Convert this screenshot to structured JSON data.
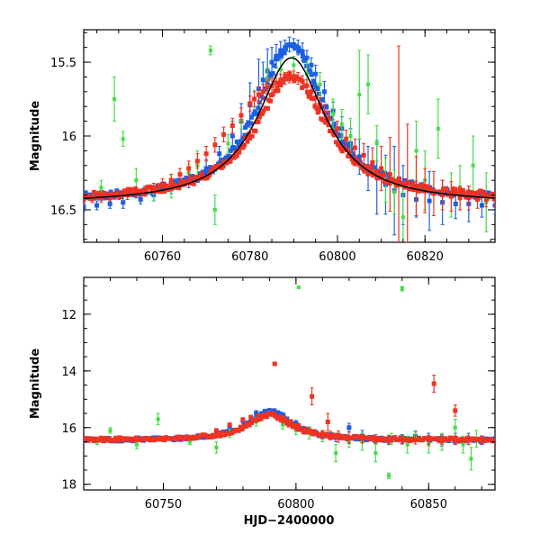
{
  "colors": {
    "blue": "#1f5fe0",
    "green": "#44dd44",
    "red": "#ee3322",
    "model": "#000000"
  },
  "chart_data": [
    {
      "type": "scatter",
      "panel": "top",
      "xlabel": "",
      "ylabel": "Magnitude",
      "xlim": [
        60742,
        60836
      ],
      "ylim": [
        16.72,
        15.28
      ],
      "y_inverted": true,
      "xticks": [
        60760,
        60780,
        60800,
        60820
      ],
      "xtick_labels": [
        "60760",
        "60780",
        "60800",
        "60820"
      ],
      "yticks": [
        15.5,
        16,
        16.5
      ],
      "ytick_labels": [
        "15.5",
        "16",
        "16.5"
      ],
      "series": [
        {
          "color_key": "blue",
          "peak": 15.38,
          "baseline": 16.45,
          "t0": 60789.5,
          "width": 9.5,
          "x": [
            60742,
            60745,
            60748,
            60751,
            60755,
            60758,
            60762,
            60766,
            60770,
            60773,
            60776,
            60778,
            60780,
            60782,
            60783,
            60784,
            60785,
            60786,
            60787,
            60788,
            60789,
            60790,
            60791,
            60792,
            60793,
            60794,
            60795,
            60797,
            60799,
            60801,
            60803,
            60805,
            60807,
            60809,
            60811,
            60813,
            60815,
            60818,
            60821,
            60824,
            60827,
            60830,
            60833,
            60836
          ],
          "y": [
            16.48,
            16.47,
            16.46,
            16.45,
            16.43,
            16.4,
            16.36,
            16.3,
            16.22,
            16.12,
            16.0,
            15.9,
            15.79,
            15.68,
            15.62,
            15.56,
            15.5,
            15.46,
            15.42,
            15.4,
            15.38,
            15.38,
            15.4,
            15.43,
            15.47,
            15.52,
            15.58,
            15.7,
            15.83,
            15.95,
            16.05,
            16.14,
            16.22,
            16.28,
            16.33,
            16.37,
            16.4,
            16.43,
            16.44,
            16.45,
            16.46,
            16.46,
            16.47,
            16.47
          ],
          "err": [
            0.03,
            0.03,
            0.03,
            0.04,
            0.03,
            0.04,
            0.03,
            0.05,
            0.06,
            0.05,
            0.1,
            0.12,
            0.15,
            0.2,
            0.12,
            0.15,
            0.1,
            0.08,
            0.06,
            0.05,
            0.05,
            0.04,
            0.05,
            0.06,
            0.05,
            0.05,
            0.06,
            0.07,
            0.06,
            0.08,
            0.1,
            0.12,
            0.15,
            0.25,
            0.2,
            0.3,
            0.2,
            0.12,
            0.2,
            0.15,
            0.1,
            0.12,
            0.08,
            0.06
          ]
        },
        {
          "color_key": "green",
          "x": [
            60746,
            60749,
            60751,
            60754,
            60758,
            60762,
            60766,
            60768,
            60771,
            60772,
            60775,
            60778,
            60781,
            60784,
            60787,
            60790,
            60793,
            60796,
            60799,
            60801,
            60803,
            60805,
            60807,
            60809,
            60811,
            60813,
            60815,
            60818,
            60820,
            60823,
            60826,
            60828,
            60831,
            60834
          ],
          "y": [
            16.35,
            15.75,
            16.02,
            16.3,
            16.38,
            16.34,
            16.25,
            16.2,
            15.42,
            16.5,
            16.05,
            15.9,
            15.75,
            15.62,
            15.55,
            15.52,
            15.58,
            15.65,
            15.85,
            15.92,
            16.0,
            15.72,
            15.65,
            16.05,
            16.3,
            16.38,
            16.55,
            16.1,
            16.3,
            15.95,
            16.4,
            16.35,
            16.2,
            16.45
          ],
          "err": [
            0.05,
            0.15,
            0.05,
            0.08,
            0.06,
            0.08,
            0.06,
            0.1,
            0.03,
            0.1,
            0.06,
            0.05,
            0.06,
            0.08,
            0.06,
            0.06,
            0.08,
            0.08,
            0.1,
            0.1,
            0.12,
            0.3,
            0.2,
            0.12,
            0.15,
            0.15,
            0.2,
            0.2,
            0.2,
            0.2,
            0.15,
            0.15,
            0.2,
            0.2
          ]
        },
        {
          "color_key": "red",
          "peak": 15.6,
          "baseline": 16.44,
          "t0": 60789.5,
          "width": 10,
          "x": [
            60742,
            60744,
            60746,
            60748,
            60750,
            60752,
            60754,
            60756,
            60758,
            60760,
            60762,
            60764,
            60766,
            60768,
            60770,
            60772,
            60774,
            60776,
            60778,
            60780,
            60781,
            60782,
            60783,
            60784,
            60785,
            60786,
            60787,
            60788,
            60789,
            60790,
            60791,
            60792,
            60793,
            60794,
            60795,
            60796,
            60797,
            60798,
            60800,
            60802,
            60804,
            60806,
            60808,
            60810,
            60812,
            60814,
            60816,
            60818,
            60820,
            60822,
            60824,
            60826,
            60828,
            60830,
            60832,
            60834,
            60836
          ],
          "y": [
            16.43,
            16.42,
            16.42,
            16.41,
            16.4,
            16.4,
            16.39,
            16.37,
            16.35,
            16.33,
            16.3,
            16.26,
            16.22,
            16.17,
            16.12,
            16.06,
            15.99,
            15.93,
            15.86,
            15.78,
            15.75,
            15.72,
            15.7,
            15.67,
            15.66,
            15.64,
            15.62,
            15.61,
            15.6,
            15.6,
            15.61,
            15.63,
            15.66,
            15.7,
            15.74,
            15.79,
            15.84,
            15.88,
            15.95,
            16.02,
            16.08,
            16.13,
            16.18,
            16.22,
            16.26,
            16.29,
            16.32,
            16.34,
            16.37,
            16.39,
            16.4,
            16.41,
            16.42,
            16.42,
            16.43,
            16.43,
            16.43
          ],
          "err": [
            0.03,
            0.03,
            0.03,
            0.03,
            0.03,
            0.03,
            0.03,
            0.03,
            0.03,
            0.04,
            0.04,
            0.04,
            0.05,
            0.05,
            0.05,
            0.05,
            0.05,
            0.05,
            0.05,
            0.05,
            0.05,
            0.05,
            0.05,
            0.05,
            0.05,
            0.05,
            0.04,
            0.04,
            0.04,
            0.04,
            0.04,
            0.04,
            0.04,
            0.04,
            0.04,
            0.05,
            0.05,
            0.05,
            0.05,
            0.06,
            0.06,
            0.08,
            0.1,
            0.15,
            0.25,
            0.9,
            0.4,
            0.2,
            0.15,
            0.15,
            0.1,
            0.1,
            0.08,
            0.08,
            0.06,
            0.05,
            0.05
          ]
        },
        {
          "color_key": "model",
          "type": "line",
          "peak": 15.47,
          "baseline": 16.46,
          "t0": 60789.5,
          "width": 9.5
        }
      ]
    },
    {
      "type": "scatter",
      "panel": "bottom",
      "xlabel": "HJD−2400000",
      "ylabel": "Magnitude",
      "xlim": [
        60720,
        60875
      ],
      "ylim": [
        18.2,
        10.7
      ],
      "y_inverted": true,
      "xticks": [
        60750,
        60800,
        60850
      ],
      "xtick_labels": [
        "60750",
        "60800",
        "60850"
      ],
      "yticks": [
        12,
        14,
        16,
        18
      ],
      "ytick_labels": [
        "12",
        "14",
        "16",
        "18"
      ],
      "series": [
        {
          "color_key": "blue",
          "peak": 15.4,
          "baseline": 16.45,
          "t0": 60790,
          "width": 9.5,
          "x": [
            60725,
            60735,
            60745,
            60755,
            60765,
            60775,
            60780,
            60785,
            60790,
            60795,
            60800,
            60805,
            60810,
            60815,
            60820,
            60825,
            60830,
            60835,
            60840,
            60845,
            60850,
            60855,
            60860,
            60865,
            60870
          ],
          "y": [
            16.45,
            16.45,
            16.44,
            16.42,
            16.3,
            16.0,
            15.75,
            15.5,
            15.4,
            15.55,
            15.85,
            16.1,
            16.25,
            16.35,
            16.0,
            16.3,
            16.4,
            16.45,
            16.4,
            16.3,
            16.4,
            16.45,
            16.4,
            16.4,
            16.45
          ],
          "err": [
            0.05,
            0.05,
            0.05,
            0.05,
            0.05,
            0.08,
            0.1,
            0.1,
            0.08,
            0.08,
            0.1,
            0.12,
            0.15,
            0.15,
            0.15,
            0.2,
            0.15,
            0.15,
            0.15,
            0.15,
            0.2,
            0.2,
            0.2,
            0.2,
            0.15
          ]
        },
        {
          "color_key": "green",
          "x": [
            60725,
            60730,
            60740,
            60748,
            60760,
            60770,
            60775,
            60785,
            60795,
            60800,
            60801,
            60805,
            60810,
            60815,
            60820,
            60825,
            60830,
            60835,
            60836,
            60840,
            60842,
            60845,
            60850,
            60855,
            60860,
            60863,
            60866,
            60868
          ],
          "y": [
            16.5,
            16.1,
            16.6,
            15.7,
            16.5,
            16.7,
            16.2,
            15.8,
            15.9,
            16.1,
            11.05,
            16.2,
            16.3,
            16.9,
            16.5,
            16.5,
            16.9,
            17.7,
            16.4,
            11.1,
            16.6,
            16.3,
            16.6,
            16.5,
            16.0,
            16.6,
            17.1,
            16.4
          ],
          "err": [
            0.1,
            0.1,
            0.15,
            0.2,
            0.1,
            0.2,
            0.15,
            0.15,
            0.15,
            0.15,
            0.05,
            0.2,
            0.2,
            0.3,
            0.2,
            0.3,
            0.3,
            0.1,
            0.2,
            0.08,
            0.3,
            0.2,
            0.3,
            0.3,
            0.3,
            0.3,
            0.4,
            0.3
          ]
        },
        {
          "color_key": "red",
          "peak": 15.55,
          "baseline": 16.44,
          "t0": 60790,
          "width": 10,
          "x": [
            60725,
            60730,
            60735,
            60740,
            60745,
            60750,
            60755,
            60760,
            60765,
            60770,
            60775,
            60780,
            60783,
            60786,
            60789,
            60792,
            60795,
            60798,
            60801,
            60804,
            60807,
            60810,
            60813,
            60816,
            60820,
            60825,
            60830,
            60835,
            60840,
            60845,
            60850,
            60855,
            60860,
            60865,
            60870,
            60792,
            60806,
            60812,
            60852,
            60860
          ],
          "y": [
            16.44,
            16.44,
            16.44,
            16.43,
            16.43,
            16.42,
            16.4,
            16.35,
            16.25,
            16.1,
            15.9,
            15.72,
            15.63,
            15.58,
            15.55,
            15.57,
            15.65,
            15.78,
            15.92,
            16.05,
            16.15,
            16.22,
            16.28,
            16.32,
            16.36,
            16.39,
            16.41,
            16.42,
            16.43,
            16.43,
            16.43,
            16.44,
            16.44,
            16.44,
            16.44,
            13.75,
            14.9,
            15.8,
            14.45,
            15.4
          ],
          "err": [
            0.03,
            0.03,
            0.03,
            0.03,
            0.03,
            0.03,
            0.03,
            0.04,
            0.04,
            0.05,
            0.05,
            0.05,
            0.05,
            0.05,
            0.05,
            0.05,
            0.05,
            0.05,
            0.06,
            0.06,
            0.08,
            0.1,
            0.15,
            0.2,
            0.2,
            0.15,
            0.15,
            0.15,
            0.15,
            0.15,
            0.15,
            0.15,
            0.15,
            0.15,
            0.15,
            0.05,
            0.3,
            0.3,
            0.3,
            0.2
          ]
        }
      ]
    }
  ]
}
